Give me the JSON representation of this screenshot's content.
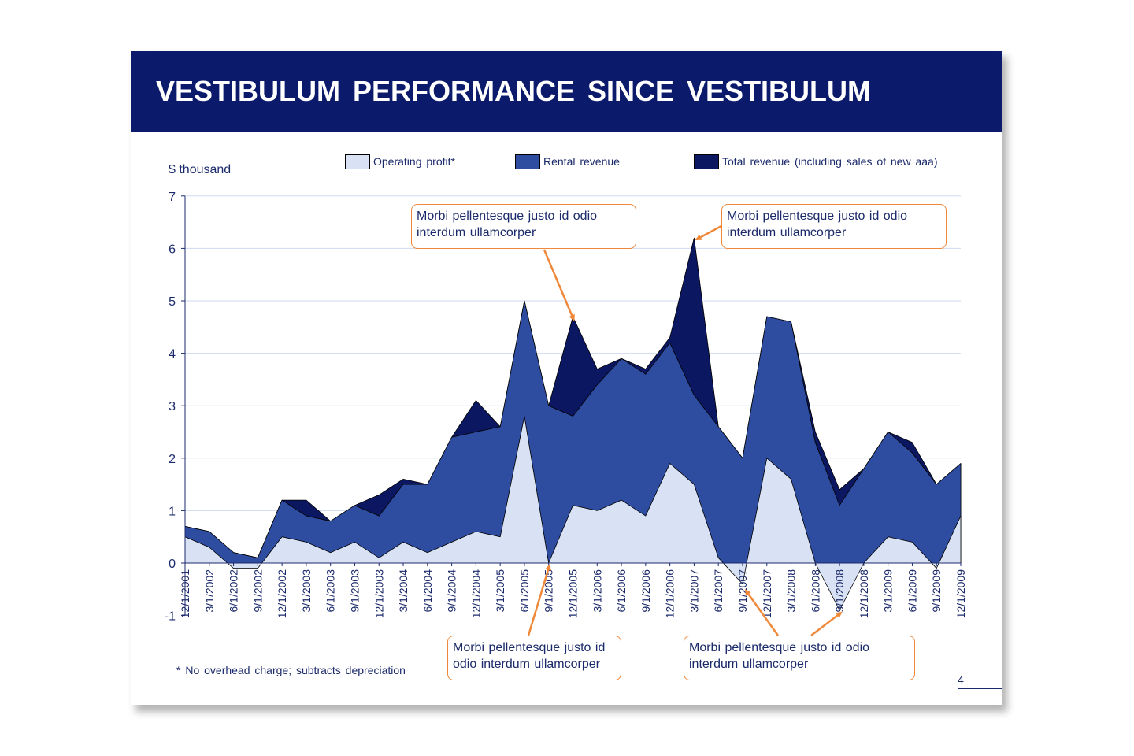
{
  "title": "VESTIBULUM  PERFORMANCE  SINCE  VESTIBULUM",
  "footnote": "*   No overhead  charge;  subtracts depreciation",
  "page_number": "4",
  "colors": {
    "title_bar": "#0b1a6b",
    "operating_profit": "#d9e2f5",
    "rental_revenue": "#2e4da0",
    "total_revenue": "#0c1761",
    "callout_border": "#f0883a",
    "text": "#1b2a6b"
  },
  "callouts": [
    {
      "text": "Morbi  pellentesque  justo id odio interdum ullamcorper",
      "points_to": "12/1/2005"
    },
    {
      "text": "Morbi  pellentesque  justo id odio interdum ullamcorper",
      "points_to": "3/1/2007"
    },
    {
      "text": "Morbi  pellentesque  justo id odio interdum ullamcorper",
      "points_to": "9/1/2005"
    },
    {
      "text": "Morbi  pellentesque  justo id odio interdum ullamcorper",
      "points_to": [
        "9/1/2007",
        "9/1/2008"
      ]
    }
  ],
  "chart_data": {
    "type": "area",
    "ylabel": "$ thousand",
    "ylim": [
      -1,
      7
    ],
    "yticks": [
      -1,
      0,
      1,
      2,
      3,
      4,
      5,
      6,
      7
    ],
    "grid": true,
    "legend_position": "top",
    "categories": [
      "12/1/2001",
      "3/1/2002",
      "6/1/2002",
      "9/1/2002",
      "12/1/2002",
      "3/1/2003",
      "6/1/2003",
      "9/1/2003",
      "12/1/2003",
      "3/1/2004",
      "6/1/2004",
      "9/1/2004",
      "12/1/2004",
      "3/1/2005",
      "6/1/2005",
      "9/1/2005",
      "12/1/2005",
      "3/1/2006",
      "6/1/2006",
      "9/1/2006",
      "12/1/2006",
      "3/1/2007",
      "6/1/2007",
      "9/1/2007",
      "12/1/2007",
      "3/1/2008",
      "6/1/2008",
      "9/1/2008",
      "12/1/2008",
      "3/1/2009",
      "6/1/2009",
      "9/1/2009",
      "12/1/2009"
    ],
    "series": [
      {
        "name": "Operating  profit*",
        "values": [
          0.5,
          0.3,
          -0.1,
          -0.1,
          0.5,
          0.4,
          0.2,
          0.4,
          0.1,
          0.4,
          0.2,
          0.4,
          0.6,
          0.5,
          2.8,
          0.0,
          1.1,
          1.0,
          1.2,
          0.9,
          1.9,
          1.5,
          0.1,
          -0.4,
          2.0,
          1.6,
          0.0,
          -0.9,
          0.0,
          0.5,
          0.4,
          -0.1,
          0.9
        ]
      },
      {
        "name": "Rental revenue",
        "values": [
          0.7,
          0.6,
          0.2,
          0.1,
          1.2,
          0.9,
          0.8,
          1.1,
          0.9,
          1.5,
          1.5,
          2.4,
          2.5,
          2.6,
          5.0,
          3.0,
          2.8,
          3.4,
          3.9,
          3.6,
          4.2,
          3.2,
          2.6,
          2.0,
          4.7,
          4.6,
          2.3,
          1.1,
          1.8,
          2.5,
          2.1,
          1.5,
          1.9
        ]
      },
      {
        "name": "Total revenue  (including sales of new aaa)",
        "values": [
          0.7,
          0.6,
          0.2,
          0.1,
          1.2,
          1.2,
          0.8,
          1.1,
          1.3,
          1.6,
          1.5,
          2.4,
          3.1,
          2.6,
          5.0,
          3.0,
          4.7,
          3.7,
          3.9,
          3.7,
          4.3,
          6.2,
          2.6,
          2.0,
          4.7,
          4.6,
          2.5,
          1.4,
          1.8,
          2.5,
          2.3,
          1.5,
          1.9
        ]
      }
    ]
  }
}
